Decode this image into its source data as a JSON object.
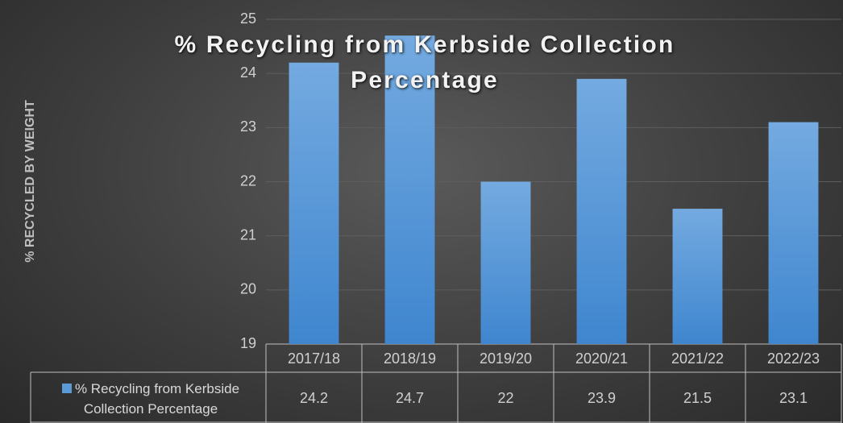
{
  "chart_data": {
    "type": "bar",
    "title": "% Recycling from Kerbside Collection Percentage",
    "y_label": "% RECYCLED BY WEIGHT",
    "categories": [
      "2017/18",
      "2018/19",
      "2019/20",
      "2020/21",
      "2021/22",
      "2022/23"
    ],
    "series": [
      {
        "name": "% Recycling from Kerbside Collection Percentage",
        "color": "#5b9bd5",
        "values": [
          24.2,
          24.7,
          22,
          23.9,
          21.5,
          23.1
        ]
      }
    ],
    "ylim": [
      19,
      25
    ],
    "yticks": [
      19,
      20,
      21,
      22,
      23,
      24,
      25
    ],
    "grid": true,
    "data_table": true
  }
}
